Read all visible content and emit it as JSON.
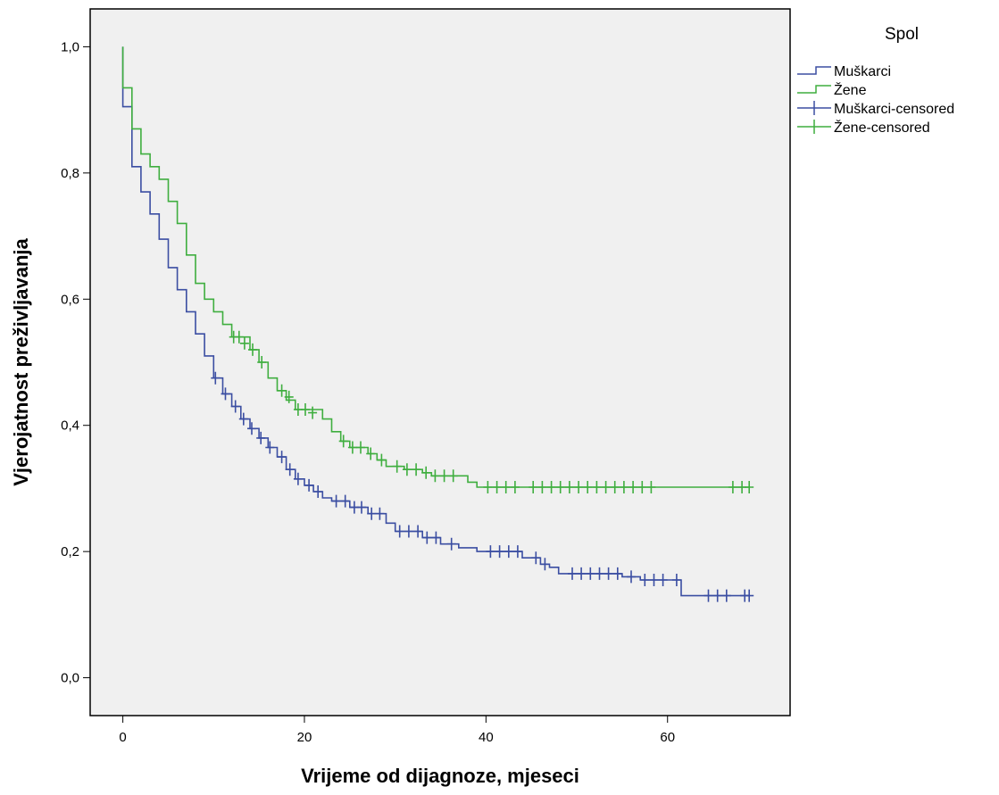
{
  "chart_data": {
    "type": "line",
    "subtype": "kaplan-meier-step",
    "xlabel": "Vrijeme od dijagnoze, mjeseci",
    "ylabel": "Vjerojatnost preživljavanja",
    "xlim": [
      -3.6,
      73.5
    ],
    "ylim": [
      -0.06,
      1.06
    ],
    "xticks": [
      0,
      20,
      40,
      60
    ],
    "xtick_labels": [
      "0",
      "20",
      "40",
      "60"
    ],
    "yticks": [
      0.0,
      0.2,
      0.4,
      0.6,
      0.8,
      1.0
    ],
    "ytick_labels": [
      "0,0",
      "0,2",
      "0,4",
      "0,6",
      "0,8",
      "1,0"
    ],
    "grid": false,
    "plot_background": "#f0f0f0",
    "legend": {
      "title": "Spol",
      "position": "top-right-outside",
      "entries": [
        "Muškarci",
        "Žene",
        "Muškarci-censored",
        "Žene-censored"
      ]
    },
    "series": [
      {
        "name": "Muškarci",
        "color": "#3b4ea2",
        "step_points": [
          [
            0,
            1.0
          ],
          [
            0,
            0.905
          ],
          [
            1,
            0.905
          ],
          [
            1,
            0.81
          ],
          [
            2,
            0.81
          ],
          [
            2,
            0.77
          ],
          [
            3,
            0.77
          ],
          [
            3,
            0.735
          ],
          [
            4,
            0.735
          ],
          [
            4,
            0.695
          ],
          [
            5,
            0.695
          ],
          [
            5,
            0.65
          ],
          [
            6,
            0.65
          ],
          [
            6,
            0.615
          ],
          [
            7,
            0.615
          ],
          [
            7,
            0.58
          ],
          [
            8,
            0.58
          ],
          [
            8,
            0.545
          ],
          [
            9,
            0.545
          ],
          [
            9,
            0.51
          ],
          [
            10,
            0.51
          ],
          [
            10,
            0.475
          ],
          [
            11,
            0.475
          ],
          [
            11,
            0.45
          ],
          [
            12,
            0.45
          ],
          [
            12,
            0.43
          ],
          [
            13,
            0.43
          ],
          [
            13,
            0.41
          ],
          [
            14,
            0.41
          ],
          [
            14,
            0.395
          ],
          [
            15,
            0.395
          ],
          [
            15,
            0.38
          ],
          [
            16,
            0.38
          ],
          [
            16,
            0.365
          ],
          [
            17,
            0.365
          ],
          [
            17,
            0.35
          ],
          [
            18,
            0.35
          ],
          [
            18,
            0.33
          ],
          [
            19,
            0.33
          ],
          [
            19,
            0.315
          ],
          [
            20,
            0.315
          ],
          [
            20,
            0.305
          ],
          [
            21,
            0.305
          ],
          [
            21,
            0.295
          ],
          [
            22,
            0.295
          ],
          [
            22,
            0.285
          ],
          [
            23,
            0.285
          ],
          [
            23,
            0.28
          ],
          [
            25,
            0.28
          ],
          [
            25,
            0.27
          ],
          [
            27,
            0.27
          ],
          [
            27,
            0.26
          ],
          [
            29,
            0.26
          ],
          [
            29,
            0.245
          ],
          [
            30,
            0.245
          ],
          [
            30,
            0.232
          ],
          [
            33,
            0.232
          ],
          [
            33,
            0.222
          ],
          [
            35,
            0.222
          ],
          [
            35,
            0.212
          ],
          [
            37,
            0.212
          ],
          [
            37,
            0.206
          ],
          [
            39,
            0.206
          ],
          [
            39,
            0.2
          ],
          [
            44,
            0.2
          ],
          [
            44,
            0.19
          ],
          [
            46,
            0.19
          ],
          [
            46,
            0.18
          ],
          [
            47,
            0.18
          ],
          [
            47,
            0.175
          ],
          [
            48,
            0.175
          ],
          [
            48,
            0.165
          ],
          [
            55,
            0.165
          ],
          [
            55,
            0.16
          ],
          [
            57,
            0.16
          ],
          [
            57,
            0.155
          ],
          [
            61.5,
            0.155
          ],
          [
            61.5,
            0.13
          ],
          [
            69,
            0.13
          ]
        ],
        "censored": [
          [
            10.2,
            0.475
          ],
          [
            11.3,
            0.45
          ],
          [
            12.4,
            0.43
          ],
          [
            13.3,
            0.41
          ],
          [
            14.2,
            0.395
          ],
          [
            15.2,
            0.38
          ],
          [
            16.2,
            0.365
          ],
          [
            17.5,
            0.35
          ],
          [
            18.4,
            0.33
          ],
          [
            19.3,
            0.315
          ],
          [
            20.5,
            0.305
          ],
          [
            21.5,
            0.295
          ],
          [
            23.5,
            0.28
          ],
          [
            24.5,
            0.28
          ],
          [
            25.5,
            0.27
          ],
          [
            26.3,
            0.27
          ],
          [
            27.4,
            0.26
          ],
          [
            28.3,
            0.26
          ],
          [
            30.5,
            0.232
          ],
          [
            31.5,
            0.232
          ],
          [
            32.5,
            0.232
          ],
          [
            33.5,
            0.222
          ],
          [
            34.5,
            0.222
          ],
          [
            36.2,
            0.212
          ],
          [
            40.5,
            0.2
          ],
          [
            41.5,
            0.2
          ],
          [
            42.5,
            0.2
          ],
          [
            43.5,
            0.2
          ],
          [
            45.5,
            0.19
          ],
          [
            46.5,
            0.18
          ],
          [
            49.5,
            0.165
          ],
          [
            50.5,
            0.165
          ],
          [
            51.5,
            0.165
          ],
          [
            52.5,
            0.165
          ],
          [
            53.5,
            0.165
          ],
          [
            54.5,
            0.165
          ],
          [
            56,
            0.16
          ],
          [
            57.5,
            0.155
          ],
          [
            58.5,
            0.155
          ],
          [
            59.5,
            0.155
          ],
          [
            61,
            0.155
          ],
          [
            64.5,
            0.13
          ],
          [
            65.5,
            0.13
          ],
          [
            66.5,
            0.13
          ],
          [
            68.5,
            0.13
          ],
          [
            69,
            0.13
          ]
        ]
      },
      {
        "name": "Žene",
        "color": "#3fae3f",
        "step_points": [
          [
            0,
            1.0
          ],
          [
            0,
            0.935
          ],
          [
            1,
            0.935
          ],
          [
            1,
            0.87
          ],
          [
            2,
            0.87
          ],
          [
            2,
            0.83
          ],
          [
            3,
            0.83
          ],
          [
            3,
            0.81
          ],
          [
            4,
            0.81
          ],
          [
            4,
            0.79
          ],
          [
            5,
            0.79
          ],
          [
            5,
            0.755
          ],
          [
            6,
            0.755
          ],
          [
            6,
            0.72
          ],
          [
            7,
            0.72
          ],
          [
            7,
            0.67
          ],
          [
            8,
            0.67
          ],
          [
            8,
            0.625
          ],
          [
            9,
            0.625
          ],
          [
            9,
            0.6
          ],
          [
            10,
            0.6
          ],
          [
            10,
            0.58
          ],
          [
            11,
            0.58
          ],
          [
            11,
            0.56
          ],
          [
            12,
            0.56
          ],
          [
            12,
            0.54
          ],
          [
            14,
            0.54
          ],
          [
            14,
            0.52
          ],
          [
            15,
            0.52
          ],
          [
            15,
            0.5
          ],
          [
            16,
            0.5
          ],
          [
            16,
            0.475
          ],
          [
            17,
            0.475
          ],
          [
            17,
            0.455
          ],
          [
            18,
            0.455
          ],
          [
            18,
            0.44
          ],
          [
            19,
            0.44
          ],
          [
            19,
            0.425
          ],
          [
            22,
            0.425
          ],
          [
            22,
            0.41
          ],
          [
            23,
            0.41
          ],
          [
            23,
            0.39
          ],
          [
            24,
            0.39
          ],
          [
            24,
            0.375
          ],
          [
            25,
            0.375
          ],
          [
            25,
            0.365
          ],
          [
            27,
            0.365
          ],
          [
            27,
            0.355
          ],
          [
            28,
            0.355
          ],
          [
            28,
            0.345
          ],
          [
            29,
            0.345
          ],
          [
            29,
            0.335
          ],
          [
            31,
            0.335
          ],
          [
            31,
            0.33
          ],
          [
            33,
            0.33
          ],
          [
            33,
            0.325
          ],
          [
            34,
            0.325
          ],
          [
            34,
            0.32
          ],
          [
            38,
            0.32
          ],
          [
            38,
            0.31
          ],
          [
            39,
            0.31
          ],
          [
            39,
            0.302
          ],
          [
            69,
            0.302
          ]
        ],
        "censored": [
          [
            12.2,
            0.54
          ],
          [
            12.8,
            0.54
          ],
          [
            13.4,
            0.53
          ],
          [
            14.3,
            0.52
          ],
          [
            15.3,
            0.5
          ],
          [
            17.5,
            0.455
          ],
          [
            18.3,
            0.445
          ],
          [
            19.3,
            0.425
          ],
          [
            20.1,
            0.425
          ],
          [
            20.9,
            0.42
          ],
          [
            24.3,
            0.375
          ],
          [
            25.3,
            0.365
          ],
          [
            26.2,
            0.365
          ],
          [
            27.3,
            0.355
          ],
          [
            28.5,
            0.345
          ],
          [
            30.2,
            0.335
          ],
          [
            31.3,
            0.33
          ],
          [
            32.3,
            0.33
          ],
          [
            33.4,
            0.325
          ],
          [
            34.4,
            0.32
          ],
          [
            35.4,
            0.32
          ],
          [
            36.4,
            0.32
          ],
          [
            40.2,
            0.302
          ],
          [
            41.2,
            0.302
          ],
          [
            42.2,
            0.302
          ],
          [
            43.2,
            0.302
          ],
          [
            45.2,
            0.302
          ],
          [
            46.2,
            0.302
          ],
          [
            47.2,
            0.302
          ],
          [
            48.2,
            0.302
          ],
          [
            49.2,
            0.302
          ],
          [
            50.2,
            0.302
          ],
          [
            51.2,
            0.302
          ],
          [
            52.2,
            0.302
          ],
          [
            53.2,
            0.302
          ],
          [
            54.2,
            0.302
          ],
          [
            55.2,
            0.302
          ],
          [
            56.2,
            0.302
          ],
          [
            57.2,
            0.302
          ],
          [
            58.2,
            0.302
          ],
          [
            67.2,
            0.302
          ],
          [
            68.2,
            0.302
          ],
          [
            69,
            0.302
          ]
        ]
      }
    ]
  }
}
